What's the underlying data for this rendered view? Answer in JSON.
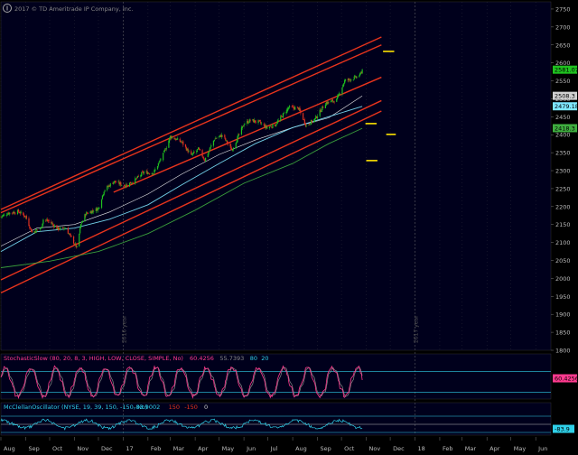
{
  "copyright": "2017 © TD Ameritrade IP Company, Inc.",
  "colors": {
    "background": "#000000",
    "panel_bg": "#00001c",
    "grid": "#2a2a3a",
    "channel": "#e8341c",
    "candle_up": "#1fc21f",
    "candle_down": "#e0301e",
    "ma_fast": "#ffffff",
    "ma_mid": "#7ee7ff",
    "ma_slow": "#3fae3f",
    "level": "#ffe400",
    "stoch_main": "#ff3a8e",
    "stoch_sig": "#8a8a8a",
    "mcclellan": "#2fd0e8",
    "axis_text": "#bbbbbb"
  },
  "chart_data": [
    {
      "type": "candlestick",
      "panel": "price",
      "y_range": [
        1800,
        2770
      ],
      "x_range": [
        "2016-08-01",
        "2018-06-20"
      ],
      "y_ticks": [
        1800,
        1850,
        1900,
        1950,
        2000,
        2050,
        2100,
        2150,
        2200,
        2250,
        2300,
        2350,
        2400,
        2450,
        2500,
        2550,
        2600,
        2650,
        2700,
        2750
      ],
      "x_ticks": [
        {
          "date": "2016-08-01",
          "label": "Aug"
        },
        {
          "date": "2016-09-01",
          "label": "Sep"
        },
        {
          "date": "2016-10-01",
          "label": "Oct"
        },
        {
          "date": "2016-11-01",
          "label": "Nov"
        },
        {
          "date": "2016-12-01",
          "label": "Dec"
        },
        {
          "date": "2017-01-01",
          "label": "17"
        },
        {
          "date": "2017-02-01",
          "label": "Feb"
        },
        {
          "date": "2017-03-01",
          "label": "Mar"
        },
        {
          "date": "2017-04-01",
          "label": "Apr"
        },
        {
          "date": "2017-05-01",
          "label": "May"
        },
        {
          "date": "2017-06-01",
          "label": "Jun"
        },
        {
          "date": "2017-07-01",
          "label": "Jul"
        },
        {
          "date": "2017-08-01",
          "label": "Aug"
        },
        {
          "date": "2017-09-01",
          "label": "Sep"
        },
        {
          "date": "2017-10-01",
          "label": "Oct"
        },
        {
          "date": "2017-11-01",
          "label": "Nov"
        },
        {
          "date": "2017-12-01",
          "label": "Dec"
        },
        {
          "date": "2018-01-01",
          "label": "18"
        },
        {
          "date": "2018-02-01",
          "label": "Feb"
        },
        {
          "date": "2018-03-01",
          "label": "Mar"
        },
        {
          "date": "2018-04-01",
          "label": "Apr"
        },
        {
          "date": "2018-05-01",
          "label": "May"
        },
        {
          "date": "2018-06-01",
          "label": "Jun"
        }
      ],
      "year_markers": [
        {
          "date": "2017-01-01",
          "label": "2016 year"
        },
        {
          "date": "2018-01-01",
          "label": "2017 year"
        }
      ],
      "price_path": [
        [
          "2016-08-01",
          2172
        ],
        [
          "2016-08-10",
          2182
        ],
        [
          "2016-08-23",
          2186
        ],
        [
          "2016-09-01",
          2172
        ],
        [
          "2016-09-09",
          2128
        ],
        [
          "2016-09-20",
          2140
        ],
        [
          "2016-09-23",
          2164
        ],
        [
          "2016-10-01",
          2158
        ],
        [
          "2016-10-11",
          2138
        ],
        [
          "2016-10-21",
          2140
        ],
        [
          "2016-11-04",
          2085
        ],
        [
          "2016-11-09",
          2150
        ],
        [
          "2016-11-15",
          2180
        ],
        [
          "2016-12-01",
          2195
        ],
        [
          "2016-12-08",
          2245
        ],
        [
          "2016-12-20",
          2270
        ],
        [
          "2017-01-03",
          2258
        ],
        [
          "2017-01-15",
          2272
        ],
        [
          "2017-01-26",
          2295
        ],
        [
          "2017-02-08",
          2294
        ],
        [
          "2017-02-20",
          2345
        ],
        [
          "2017-03-01",
          2395
        ],
        [
          "2017-03-15",
          2380
        ],
        [
          "2017-03-27",
          2342
        ],
        [
          "2017-04-05",
          2360
        ],
        [
          "2017-04-13",
          2330
        ],
        [
          "2017-04-25",
          2388
        ],
        [
          "2017-05-05",
          2399
        ],
        [
          "2017-05-17",
          2357
        ],
        [
          "2017-06-01",
          2430
        ],
        [
          "2017-06-09",
          2440
        ],
        [
          "2017-06-20",
          2435
        ],
        [
          "2017-06-29",
          2420
        ],
        [
          "2017-07-10",
          2427
        ],
        [
          "2017-07-27",
          2476
        ],
        [
          "2017-08-08",
          2474
        ],
        [
          "2017-08-18",
          2425
        ],
        [
          "2017-08-29",
          2444
        ],
        [
          "2017-09-11",
          2488
        ],
        [
          "2017-09-25",
          2497
        ],
        [
          "2017-10-05",
          2550
        ],
        [
          "2017-10-16",
          2557
        ],
        [
          "2017-10-24",
          2565
        ],
        [
          "2017-10-27",
          2581
        ]
      ],
      "moving_averages": [
        {
          "name": "ma_fast",
          "color_key": "ma_fast",
          "points": [
            [
              "2016-08-01",
              2090
            ],
            [
              "2016-09-15",
              2140
            ],
            [
              "2016-11-01",
              2150
            ],
            [
              "2016-12-15",
              2185
            ],
            [
              "2017-02-01",
              2235
            ],
            [
              "2017-03-15",
              2290
            ],
            [
              "2017-05-01",
              2345
            ],
            [
              "2017-06-15",
              2385
            ],
            [
              "2017-08-01",
              2420
            ],
            [
              "2017-09-15",
              2447
            ],
            [
              "2017-10-27",
              2508
            ]
          ]
        },
        {
          "name": "ma_mid",
          "color_key": "ma_mid",
          "points": [
            [
              "2016-08-01",
              2075
            ],
            [
              "2016-09-15",
              2130
            ],
            [
              "2016-11-01",
              2140
            ],
            [
              "2016-12-15",
              2165
            ],
            [
              "2017-02-01",
              2205
            ],
            [
              "2017-03-15",
              2260
            ],
            [
              "2017-05-01",
              2320
            ],
            [
              "2017-06-15",
              2375
            ],
            [
              "2017-08-01",
              2420
            ],
            [
              "2017-09-15",
              2450
            ],
            [
              "2017-10-27",
              2479
            ]
          ]
        },
        {
          "name": "ma_slow",
          "color_key": "ma_slow",
          "points": [
            [
              "2016-08-01",
              2030
            ],
            [
              "2016-10-01",
              2048
            ],
            [
              "2016-12-01",
              2075
            ],
            [
              "2017-02-01",
              2125
            ],
            [
              "2017-04-01",
              2190
            ],
            [
              "2017-06-01",
              2265
            ],
            [
              "2017-08-01",
              2320
            ],
            [
              "2017-09-15",
              2375
            ],
            [
              "2017-10-27",
              2418
            ]
          ]
        }
      ],
      "channel_lines": [
        {
          "from": [
            "2016-08-01",
            2192
          ],
          "to": [
            "2017-11-20",
            2672
          ]
        },
        {
          "from": [
            "2016-08-01",
            2183
          ],
          "to": [
            "2017-11-20",
            2650
          ]
        },
        {
          "from": [
            "2016-08-01",
            1996
          ],
          "to": [
            "2017-11-20",
            2495
          ]
        },
        {
          "from": [
            "2016-08-01",
            1960
          ],
          "to": [
            "2017-11-20",
            2466
          ]
        },
        {
          "from": [
            "2016-12-20",
            2240
          ],
          "to": [
            "2017-11-20",
            2560
          ]
        }
      ],
      "level_marks": [
        {
          "date_from": "2017-11-22",
          "date_to": "2017-12-06",
          "value": 2632
        },
        {
          "date_from": "2017-10-31",
          "date_to": "2017-11-14",
          "value": 2431
        },
        {
          "date_from": "2017-11-26",
          "date_to": "2017-12-08",
          "value": 2401
        },
        {
          "date_from": "2017-11-01",
          "date_to": "2017-11-15",
          "value": 2328
        }
      ],
      "price_labels": [
        {
          "value": 2581.07,
          "text": "2581.07",
          "bg": "#1fc21f",
          "fg": "#000000"
        },
        {
          "value": 2508.3,
          "text": "2508.3",
          "bg": "#d0d0d0",
          "fg": "#000000"
        },
        {
          "value": 2479.18,
          "text": "2479.18",
          "bg": "#7ee7ff",
          "fg": "#000000"
        },
        {
          "value": 2418.3,
          "text": "2418.3",
          "bg": "#3fae3f",
          "fg": "#000000"
        }
      ]
    },
    {
      "type": "line",
      "panel": "stochastic",
      "title": "StochasticSlow (80, 20, 8, 3, HIGH, LOW, CLOSE, SIMPLE, No)",
      "values_text": [
        "60.4256",
        "55.7393",
        "80",
        "20"
      ],
      "values_colors": [
        "#ff3a8e",
        "#8a8a8a",
        "#2fd0e8",
        "#2fd0e8"
      ],
      "y_range": [
        0,
        100
      ],
      "levels": [
        80,
        20
      ],
      "last_label": {
        "value": 60.4256,
        "text": "60.4256",
        "bg": "#ff3a8e",
        "fg": "#000000"
      }
    },
    {
      "type": "line",
      "panel": "mcclellan",
      "title": "McClellanOscillator (NYSE, 19, 39, 150, -150, No)",
      "values_text": [
        "-83.9002",
        "150",
        "-150",
        "0"
      ],
      "values_colors": [
        "#2fd0e8",
        "#e8341c",
        "#e8341c",
        "#cccccc"
      ],
      "y_range": [
        -200,
        200
      ],
      "levels": [
        150,
        0,
        -150
      ],
      "last_label": {
        "value": -83.9002,
        "text": "-83.9",
        "bg": "#2fd0e8",
        "fg": "#000000"
      }
    }
  ]
}
